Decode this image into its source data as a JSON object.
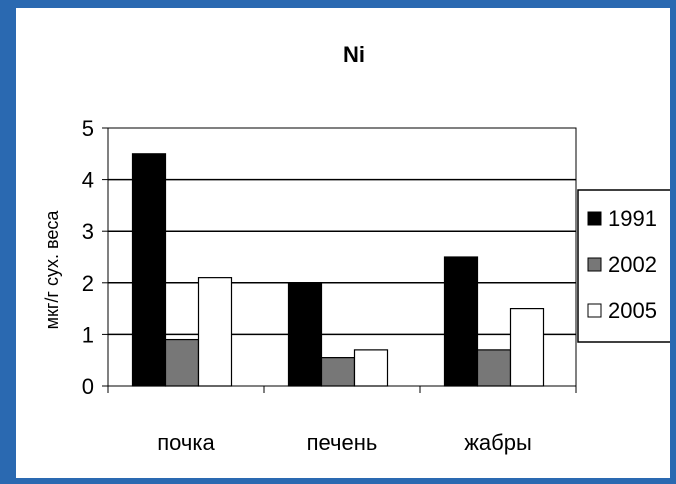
{
  "chart_data": {
    "type": "bar",
    "title": "Ni",
    "ylabel": "мкг/г сух. веса",
    "xlabel": "",
    "categories": [
      "почка",
      "печень",
      "жабры"
    ],
    "series": [
      {
        "name": "1991",
        "values": [
          4.5,
          2.0,
          2.5
        ],
        "color": "#000000"
      },
      {
        "name": "2002",
        "values": [
          0.9,
          0.55,
          0.7
        ],
        "color": "#777777"
      },
      {
        "name": "2005",
        "values": [
          2.1,
          0.7,
          1.5
        ],
        "color": "#ffffff"
      }
    ],
    "ylim": [
      0,
      5
    ],
    "yticks": [
      "0",
      "1",
      "2",
      "3",
      "4",
      "5"
    ],
    "grid": true,
    "legend_position": "right"
  }
}
